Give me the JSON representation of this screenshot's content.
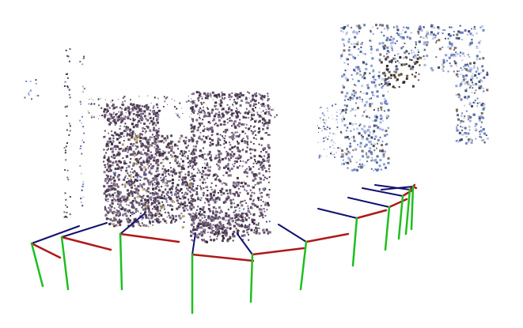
{
  "scene": {
    "background": "#ffffff",
    "point_palette": [
      "#4a3a4e",
      "#5c4760",
      "#6b5570",
      "#7d6a85",
      "#3d3044",
      "#8a7a96",
      "#56485f"
    ],
    "blue_palette": [
      "#8ea2d6",
      "#6f86c8",
      "#a9b6e0",
      "#5a6ea8",
      "#c5cde8",
      "#3f4a6e",
      "#7b6b5a"
    ],
    "axis_colors": {
      "x": "#b01818",
      "y": "#1fbf1f",
      "z": "#101070"
    }
  }
}
